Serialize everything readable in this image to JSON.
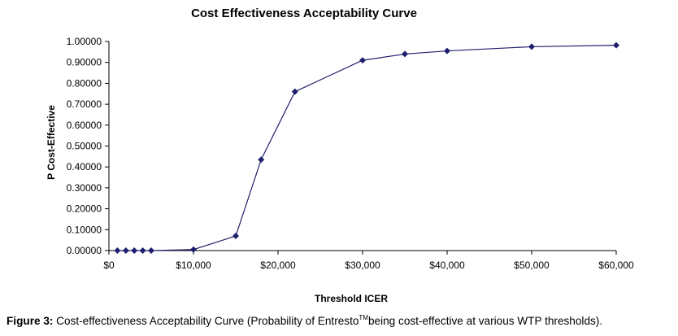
{
  "chart_data": {
    "type": "line",
    "title": "Cost Effectiveness Acceptability Curve",
    "xlabel": "Threshold ICER",
    "ylabel": "P Cost-Effective",
    "xlim": [
      0,
      60000
    ],
    "ylim": [
      0,
      1
    ],
    "grid": false,
    "x_ticks": [
      0,
      10000,
      20000,
      30000,
      40000,
      50000,
      60000
    ],
    "x_tick_labels": [
      "$0",
      "$10,000",
      "$20,000",
      "$30,000",
      "$40,000",
      "$50,000",
      "$60,000"
    ],
    "y_ticks": [
      0,
      0.1,
      0.2,
      0.3,
      0.4,
      0.5,
      0.6,
      0.7,
      0.8,
      0.9,
      1.0
    ],
    "y_tick_labels": [
      "0.00000",
      "0.10000",
      "0.20000",
      "0.30000",
      "0.40000",
      "0.50000",
      "0.60000",
      "0.70000",
      "0.80000",
      "0.90000",
      "1.00000"
    ],
    "series": [
      {
        "color": "#1f1f6e",
        "marker": "diamond",
        "x": [
          1000,
          2000,
          3000,
          4000,
          5000,
          10000,
          15000,
          18000,
          22000,
          30000,
          35000,
          40000,
          50000,
          60000
        ],
        "y": [
          0.0,
          0.0,
          0.0,
          0.0,
          0.0,
          0.005,
          0.07,
          0.435,
          0.76,
          0.91,
          0.94,
          0.955,
          0.975,
          0.982
        ]
      }
    ]
  },
  "caption": {
    "label": "Figure 3:",
    "text_before": " Cost-effectiveness Acceptability Curve (Probability of Entresto",
    "superscript": "TM",
    "text_after": "being cost-effective at various WTP thresholds)."
  }
}
